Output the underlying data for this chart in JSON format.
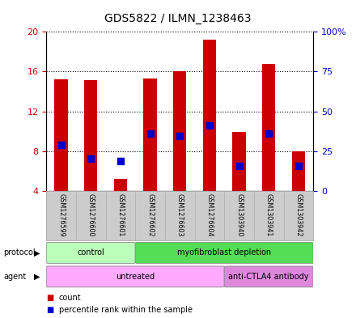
{
  "title": "GDS5822 / ILMN_1238463",
  "samples": [
    "GSM1276599",
    "GSM1276600",
    "GSM1276601",
    "GSM1276602",
    "GSM1276603",
    "GSM1276604",
    "GSM1303940",
    "GSM1303941",
    "GSM1303942"
  ],
  "counts": [
    15.2,
    15.1,
    5.2,
    15.3,
    16.0,
    19.2,
    9.9,
    16.8,
    8.0
  ],
  "percentile_ranks": [
    8.6,
    7.2,
    7.0,
    9.8,
    9.5,
    10.6,
    6.5,
    9.8,
    6.5
  ],
  "bar_bottom": 4.0,
  "ylim": [
    4,
    20
  ],
  "yticks_left": [
    4,
    8,
    12,
    16,
    20
  ],
  "yticks_right_vals": [
    4,
    8,
    12,
    16,
    20
  ],
  "yticks_right_labels": [
    "0",
    "25",
    "50",
    "75",
    "100%"
  ],
  "bar_color": "#cc0000",
  "dot_color": "#0000cc",
  "protocol_groups": [
    {
      "label": "control",
      "start": 0,
      "end": 3,
      "color": "#bbffbb"
    },
    {
      "label": "myofibroblast depletion",
      "start": 3,
      "end": 9,
      "color": "#55dd55"
    }
  ],
  "agent_groups": [
    {
      "label": "untreated",
      "start": 0,
      "end": 6,
      "color": "#ffaaff"
    },
    {
      "label": "anti-CTLA4 antibody",
      "start": 6,
      "end": 9,
      "color": "#dd88dd"
    }
  ],
  "protocol_label": "protocol",
  "agent_label": "agent",
  "legend_count_color": "#cc0000",
  "legend_percentile_color": "#0000cc",
  "bar_width": 0.45,
  "dot_size": 35,
  "background_color": "#ffffff",
  "tick_label_color_left": "#cc0000",
  "tick_label_color_right": "#0000cc",
  "sample_bg_color": "#cccccc",
  "sample_sep_color": "#aaaaaa"
}
